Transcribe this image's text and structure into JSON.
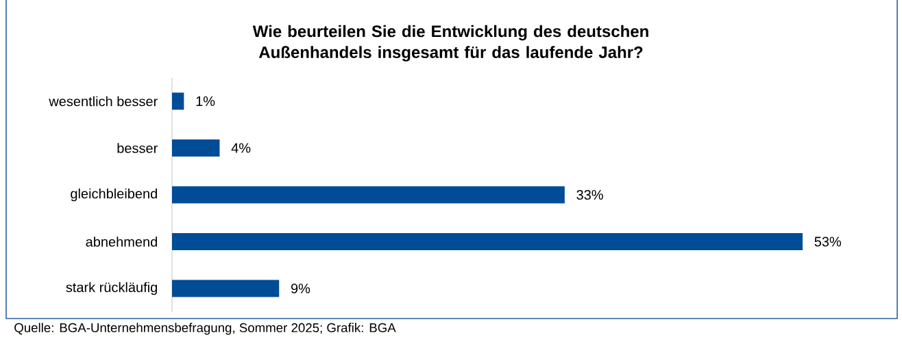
{
  "chart_data": {
    "type": "bar",
    "orientation": "horizontal",
    "title": "Wie beurteilen Sie die Entwicklung des deutschen Außenhandels insgesamt für das laufende Jahr?",
    "categories": [
      "wesentlich besser",
      "besser",
      "gleichbleibend",
      "abnehmend",
      "stark rückläufig"
    ],
    "values": [
      1,
      4,
      33,
      53,
      9
    ],
    "value_labels": [
      "1%",
      "4%",
      "33%",
      "53%",
      "9%"
    ],
    "color": "#004c97",
    "annotations": [
      "Quelle: BGA-Unternehmensbefragung, Sommer 2025; Grafik: BGA"
    ]
  }
}
